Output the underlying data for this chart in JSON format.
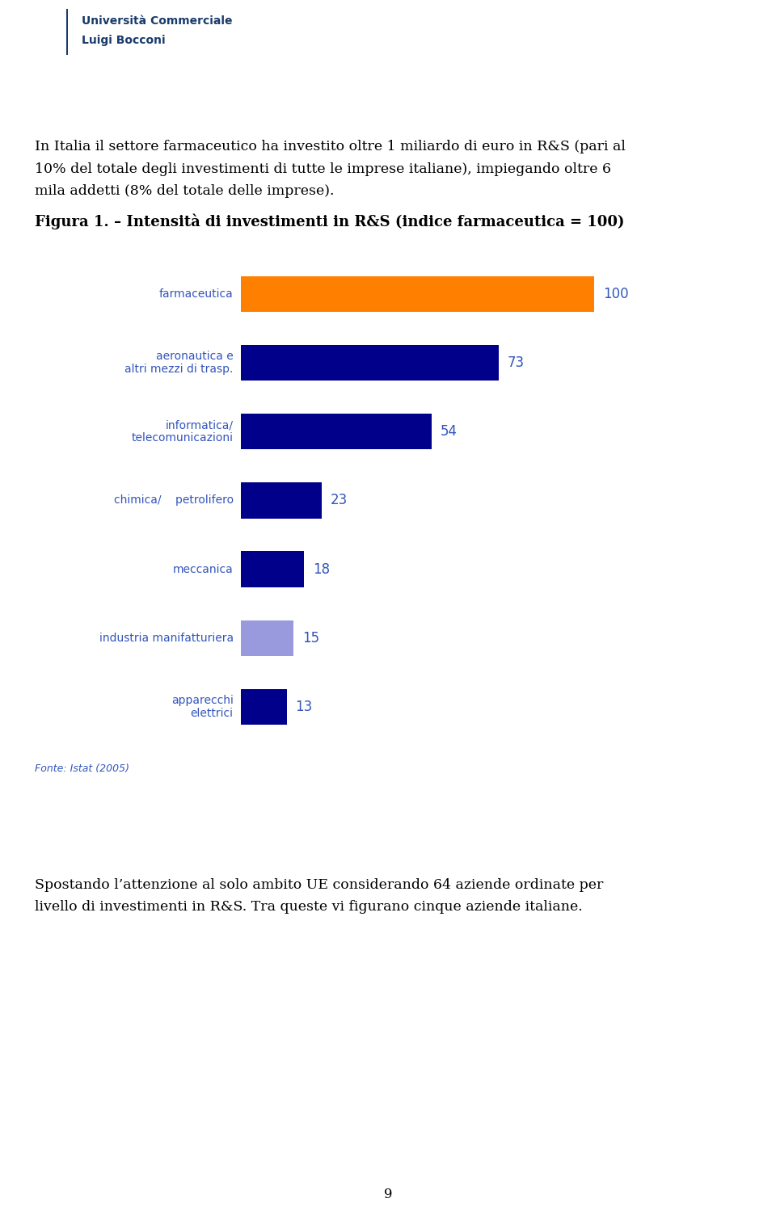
{
  "page_title_line1": "In Italia il settore farmaceutico ha investito oltre 1 miliardo di euro in R&S (pari al",
  "page_title_line2": "10% del totale degli investimenti di tutte le imprese italiane), impiegando oltre 6",
  "page_title_line3": "mila addetti (8% del totale delle imprese).",
  "figure_title": "Figura 1. – Intensità di investimenti in R&S (indice farmaceutica = 100)",
  "categories": [
    "farmaceutica",
    "aeronautica e\naltri mezzi di trasp.",
    "informatica/\ntelecomunicazioni",
    "chimica/    petrolifero",
    "meccanica",
    "industria manifatturiera",
    "apparecchi\nelettrici"
  ],
  "values": [
    100,
    73,
    54,
    23,
    18,
    15,
    13
  ],
  "bar_colors": [
    "#FF8000",
    "#00008B",
    "#00008B",
    "#00008B",
    "#00008B",
    "#9999DD",
    "#00008B"
  ],
  "label_color": "#3355BB",
  "fonte_text": "Fonte: Istat (2005)",
  "bottom_text_line1": "Spostando l’attenzione al solo ambito UE considerando 64 aziende ordinate per",
  "bottom_text_line2": "livello di investimenti in R&S. Tra queste vi figurano cinque aziende italiane.",
  "page_number": "9",
  "background_color": "#FFFFFF",
  "text_color": "#000000",
  "blue_label_color": "#3355BB",
  "header_line_color": "#1a3a6b",
  "header_text": "Università Commerciale",
  "header_text2": "Luigi Bocconi"
}
